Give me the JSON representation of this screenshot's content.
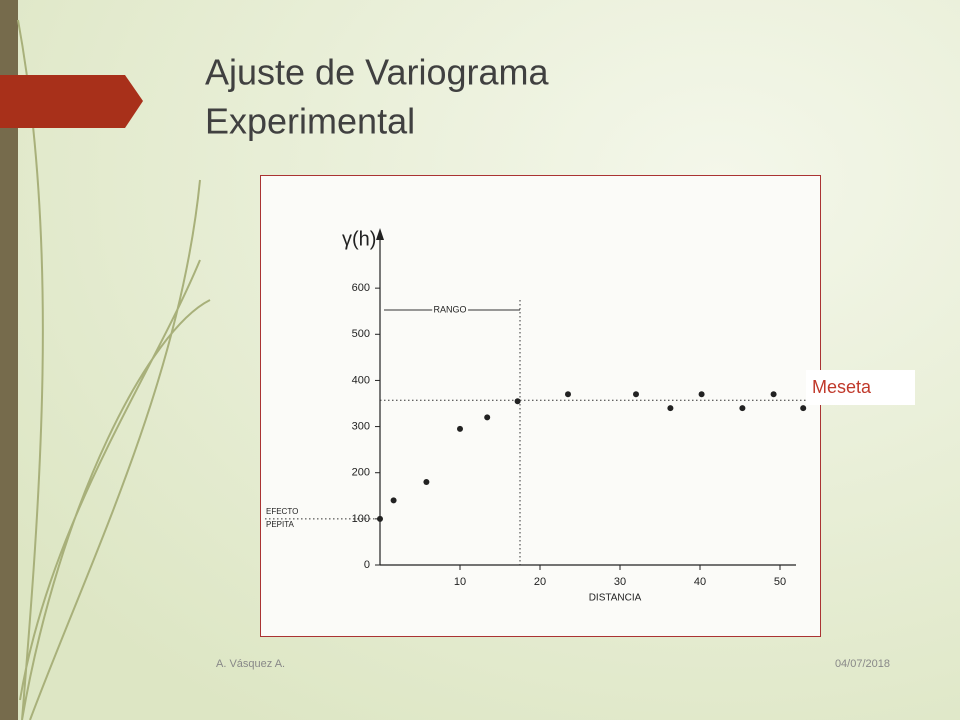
{
  "slide": {
    "title": [
      "Ajuste de Variograma",
      "Experimental"
    ],
    "author": "A. Vásquez A.",
    "date": "04/07/2018"
  },
  "chart_data": {
    "type": "scatter",
    "y_label": "γ(h)",
    "x_label": "DISTANCIA",
    "x": [
      0,
      1.7,
      5.8,
      10,
      13.4,
      17.2,
      23.5,
      32,
      36.3,
      40.2,
      45.3,
      49.2,
      52.9
    ],
    "values": [
      100,
      140,
      180,
      295,
      320,
      355,
      370,
      370,
      340,
      370,
      340,
      370,
      340
    ],
    "color": "#222222",
    "xlim": [
      0,
      52
    ],
    "ylim": [
      0,
      700
    ],
    "xticks": [
      10,
      20,
      30,
      40,
      50
    ],
    "yticks": [
      0,
      100,
      200,
      300,
      400,
      500,
      600
    ],
    "annotations": [
      {
        "lines": [
          "RANGO"
        ],
        "x": 17.5
      },
      {
        "lines": [
          "EFECTO",
          "PEPITA"
        ],
        "y": 100
      },
      {
        "lines": [
          "Meseta"
        ],
        "y": 357
      }
    ]
  }
}
